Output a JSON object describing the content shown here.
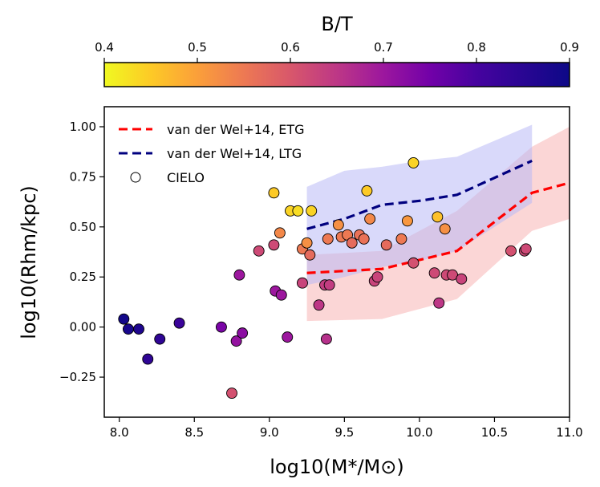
{
  "chart_data": {
    "type": "scatter",
    "xlabel": "log10(M*/M⊙)",
    "ylabel": "log10(Rhm/kpc)",
    "xlim": [
      7.9,
      11.0
    ],
    "ylim": [
      -0.45,
      1.1
    ],
    "x_ticks": [
      8.0,
      8.5,
      9.0,
      9.5,
      10.0,
      10.5,
      11.0
    ],
    "x_tick_labels": [
      "8.0",
      "8.5",
      "9.0",
      "9.5",
      "10.0",
      "10.5",
      "11.0"
    ],
    "y_ticks": [
      -0.25,
      0.0,
      0.25,
      0.5,
      0.75,
      1.0
    ],
    "y_tick_labels": [
      "−0.25",
      "0.00",
      "0.25",
      "0.50",
      "0.75",
      "1.00"
    ],
    "colorbar": {
      "label": "B/T",
      "range": [
        0.4,
        0.9
      ],
      "ticks": [
        0.4,
        0.5,
        0.6,
        0.7,
        0.8,
        0.9
      ],
      "tick_labels": [
        "0.4",
        "0.5",
        "0.6",
        "0.7",
        "0.8",
        "0.9"
      ],
      "colormap": "plasma_r"
    },
    "legend": {
      "placement": "upper-left",
      "entries": [
        "van der Wel+14, ETG",
        "van der Wel+14, LTG",
        "CIELO"
      ]
    },
    "series": [
      {
        "name": "van der Wel+14, ETG",
        "kind": "line-band",
        "color": "#ff0000",
        "band_color": "#f8b4b4",
        "x": [
          9.25,
          9.75,
          10.25,
          10.75,
          11.0
        ],
        "y": [
          0.27,
          0.29,
          0.38,
          0.67,
          0.72
        ],
        "y_low": [
          0.03,
          0.04,
          0.14,
          0.48,
          0.54
        ],
        "y_high": [
          0.36,
          0.38,
          0.58,
          0.9,
          1.0
        ]
      },
      {
        "name": "van der Wel+14, LTG",
        "kind": "line-band",
        "color": "#00007f",
        "band_color": "#b9b9f5",
        "x": [
          9.25,
          9.5,
          9.75,
          10.0,
          10.25,
          10.75
        ],
        "y": [
          0.49,
          0.54,
          0.61,
          0.63,
          0.66,
          0.83
        ],
        "y_low": [
          0.21,
          0.25,
          0.3,
          0.33,
          0.38,
          0.62
        ],
        "y_high": [
          0.7,
          0.78,
          0.8,
          0.83,
          0.85,
          1.01
        ]
      },
      {
        "name": "CIELO",
        "kind": "scatter",
        "points": [
          {
            "x": 8.03,
            "y": 0.04,
            "bt": 0.89
          },
          {
            "x": 8.06,
            "y": -0.01,
            "bt": 0.88
          },
          {
            "x": 8.13,
            "y": -0.01,
            "bt": 0.87
          },
          {
            "x": 8.19,
            "y": -0.16,
            "bt": 0.84
          },
          {
            "x": 8.27,
            "y": -0.06,
            "bt": 0.84
          },
          {
            "x": 8.4,
            "y": 0.02,
            "bt": 0.82
          },
          {
            "x": 8.68,
            "y": 0.0,
            "bt": 0.74
          },
          {
            "x": 8.75,
            "y": -0.33,
            "bt": 0.61
          },
          {
            "x": 8.78,
            "y": -0.07,
            "bt": 0.71
          },
          {
            "x": 8.8,
            "y": 0.26,
            "bt": 0.7
          },
          {
            "x": 8.82,
            "y": -0.03,
            "bt": 0.72
          },
          {
            "x": 8.93,
            "y": 0.38,
            "bt": 0.62
          },
          {
            "x": 9.03,
            "y": 0.67,
            "bt": 0.45
          },
          {
            "x": 9.03,
            "y": 0.41,
            "bt": 0.62
          },
          {
            "x": 9.04,
            "y": 0.18,
            "bt": 0.7
          },
          {
            "x": 9.07,
            "y": 0.47,
            "bt": 0.53
          },
          {
            "x": 9.08,
            "y": 0.16,
            "bt": 0.7
          },
          {
            "x": 9.12,
            "y": -0.05,
            "bt": 0.7
          },
          {
            "x": 9.14,
            "y": 0.58,
            "bt": 0.44
          },
          {
            "x": 9.19,
            "y": 0.58,
            "bt": 0.43
          },
          {
            "x": 9.22,
            "y": 0.39,
            "bt": 0.55
          },
          {
            "x": 9.22,
            "y": 0.22,
            "bt": 0.63
          },
          {
            "x": 9.25,
            "y": 0.42,
            "bt": 0.52
          },
          {
            "x": 9.27,
            "y": 0.36,
            "bt": 0.57
          },
          {
            "x": 9.28,
            "y": 0.58,
            "bt": 0.44
          },
          {
            "x": 9.33,
            "y": 0.11,
            "bt": 0.65
          },
          {
            "x": 9.37,
            "y": 0.21,
            "bt": 0.64
          },
          {
            "x": 9.38,
            "y": -0.06,
            "bt": 0.66
          },
          {
            "x": 9.39,
            "y": 0.44,
            "bt": 0.55
          },
          {
            "x": 9.4,
            "y": 0.21,
            "bt": 0.64
          },
          {
            "x": 9.46,
            "y": 0.51,
            "bt": 0.52
          },
          {
            "x": 9.48,
            "y": 0.45,
            "bt": 0.55
          },
          {
            "x": 9.52,
            "y": 0.46,
            "bt": 0.55
          },
          {
            "x": 9.55,
            "y": 0.42,
            "bt": 0.57
          },
          {
            "x": 9.6,
            "y": 0.46,
            "bt": 0.56
          },
          {
            "x": 9.63,
            "y": 0.44,
            "bt": 0.56
          },
          {
            "x": 9.65,
            "y": 0.68,
            "bt": 0.45
          },
          {
            "x": 9.67,
            "y": 0.54,
            "bt": 0.53
          },
          {
            "x": 9.7,
            "y": 0.23,
            "bt": 0.63
          },
          {
            "x": 9.72,
            "y": 0.25,
            "bt": 0.63
          },
          {
            "x": 9.78,
            "y": 0.41,
            "bt": 0.57
          },
          {
            "x": 9.88,
            "y": 0.44,
            "bt": 0.55
          },
          {
            "x": 9.92,
            "y": 0.53,
            "bt": 0.51
          },
          {
            "x": 9.96,
            "y": 0.82,
            "bt": 0.44
          },
          {
            "x": 9.96,
            "y": 0.32,
            "bt": 0.61
          },
          {
            "x": 10.1,
            "y": 0.27,
            "bt": 0.62
          },
          {
            "x": 10.12,
            "y": 0.55,
            "bt": 0.46
          },
          {
            "x": 10.13,
            "y": 0.12,
            "bt": 0.65
          },
          {
            "x": 10.17,
            "y": 0.49,
            "bt": 0.52
          },
          {
            "x": 10.18,
            "y": 0.26,
            "bt": 0.62
          },
          {
            "x": 10.22,
            "y": 0.26,
            "bt": 0.62
          },
          {
            "x": 10.28,
            "y": 0.24,
            "bt": 0.63
          },
          {
            "x": 10.61,
            "y": 0.38,
            "bt": 0.61
          },
          {
            "x": 10.7,
            "y": 0.38,
            "bt": 0.62
          },
          {
            "x": 10.71,
            "y": 0.39,
            "bt": 0.62
          }
        ]
      }
    ],
    "grid": false
  }
}
